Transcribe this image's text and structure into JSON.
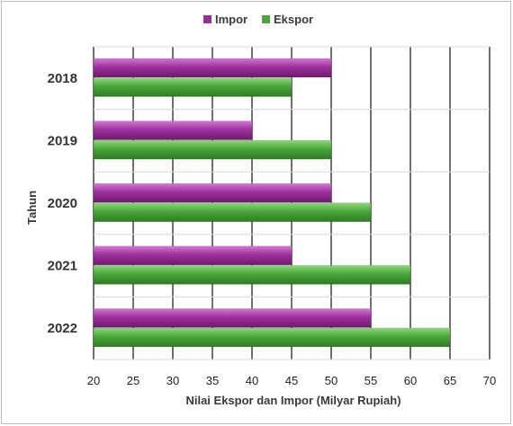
{
  "chart_data": {
    "type": "bar",
    "orientation": "horizontal",
    "categories": [
      "2018",
      "2019",
      "2020",
      "2021",
      "2022"
    ],
    "series": [
      {
        "name": "Impor",
        "values": [
          50,
          40,
          50,
          45,
          55
        ],
        "color": "#9b2c9b"
      },
      {
        "name": "Ekspor",
        "values": [
          45,
          50,
          55,
          60,
          65
        ],
        "color": "#4aa83a"
      }
    ],
    "xlabel": "Nilai Ekspor dan Impor (Milyar Rupiah)",
    "ylabel": "Tahun",
    "xlim": [
      20,
      70
    ],
    "xticks": [
      "20",
      "25",
      "30",
      "35",
      "40",
      "45",
      "50",
      "55",
      "60",
      "65",
      "70"
    ],
    "grid": "vertical",
    "legend_position": "top"
  }
}
